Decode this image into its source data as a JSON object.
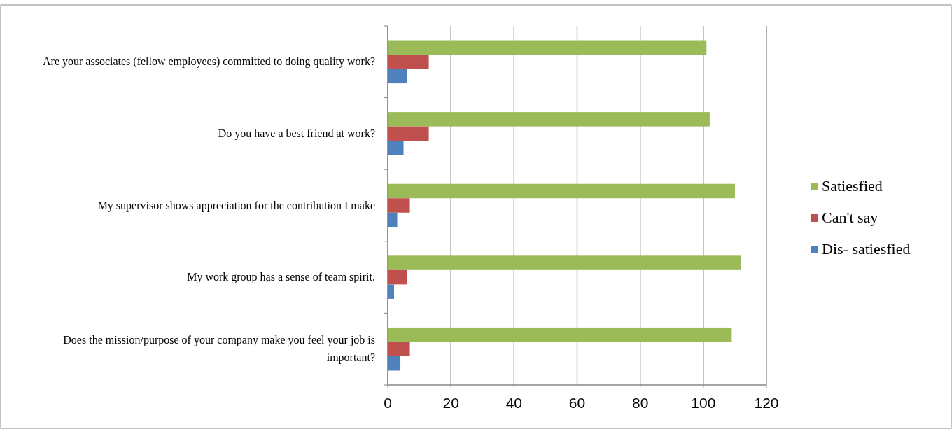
{
  "chart_data": {
    "type": "bar",
    "orientation": "horizontal",
    "categories": [
      "Are your associates (fellow employees) committed to doing quality work?",
      "Do you have a best friend at work?",
      "My supervisor shows appreciation for the contribution I make",
      "My work group has a sense of team spirit.",
      "Does the mission/purpose of your company make you feel your job is important?"
    ],
    "series": [
      {
        "name": "Satiesfied",
        "color": "#9bbb59",
        "values": [
          101,
          102,
          110,
          112,
          109
        ]
      },
      {
        "name": "Can't say",
        "color": "#c0504d",
        "values": [
          13,
          13,
          7,
          6,
          7
        ]
      },
      {
        "name": "Dis- satiesfied",
        "color": "#4f81bd",
        "values": [
          6,
          5,
          3,
          2,
          4
        ]
      }
    ],
    "xlim": [
      0,
      120
    ],
    "xticks": [
      0,
      20,
      40,
      60,
      80,
      100,
      120
    ],
    "grid": "x",
    "legend": "right"
  }
}
